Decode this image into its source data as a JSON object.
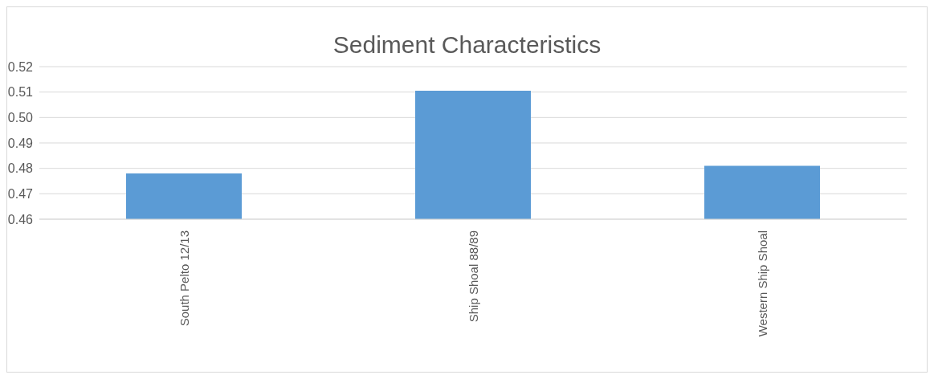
{
  "chart_data": {
    "type": "bar",
    "title": "Sediment Characteristics",
    "categories": [
      "South Pelto 12/13",
      "Ship Shoal 88/89",
      "Western Ship Shoal"
    ],
    "values": [
      0.478,
      0.5105,
      0.481
    ],
    "color": "#5b9bd5",
    "ylim": [
      0.46,
      0.52
    ],
    "yticks": [
      {
        "value": 0.46,
        "label": "0.46"
      },
      {
        "value": 0.47,
        "label": "0.47"
      },
      {
        "value": 0.48,
        "label": "0.48"
      },
      {
        "value": 0.49,
        "label": "0.49"
      },
      {
        "value": 0.5,
        "label": "0.50"
      },
      {
        "value": 0.51,
        "label": "0.51"
      },
      {
        "value": 0.52,
        "label": "0.52"
      }
    ],
    "grid": "y",
    "legend": false
  }
}
